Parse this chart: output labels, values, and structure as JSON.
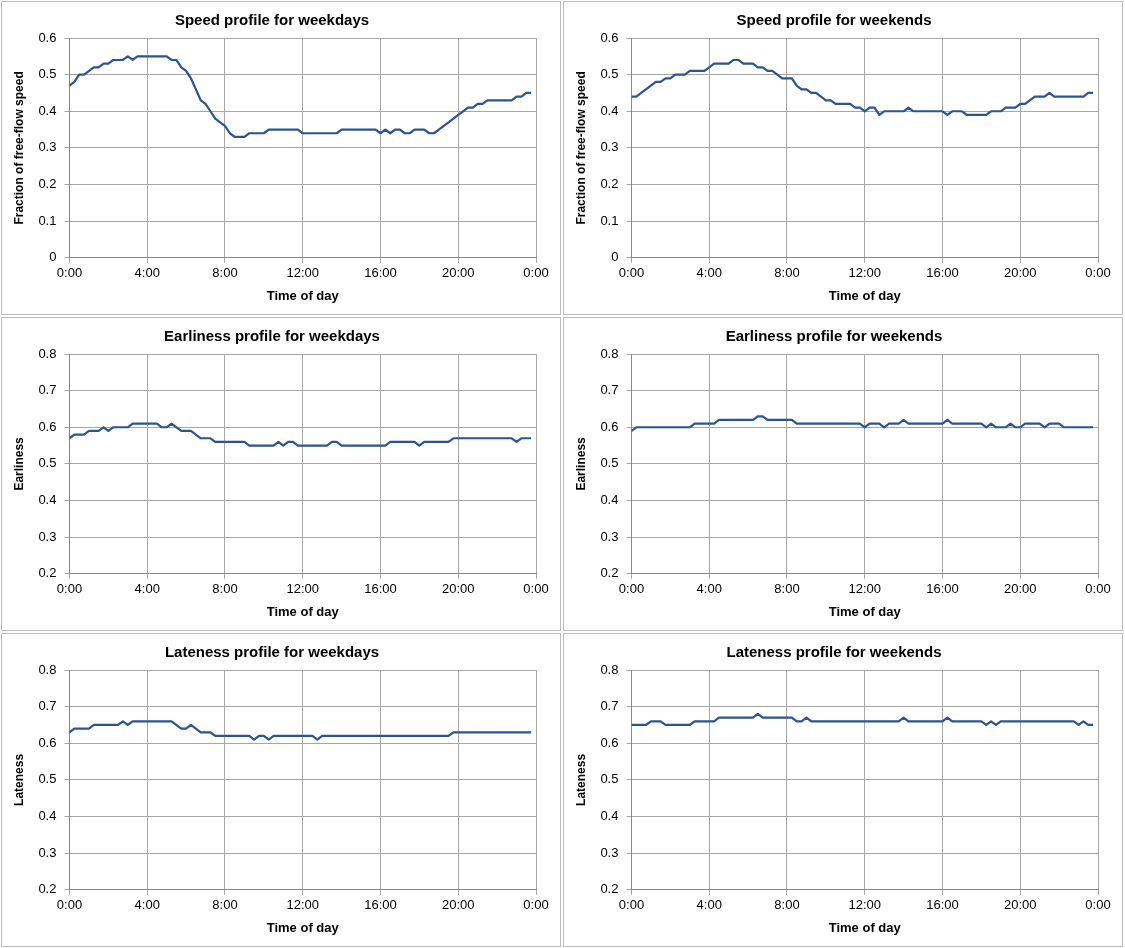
{
  "chart_data": [
    {
      "type": "line",
      "title": "Speed profile for weekdays",
      "xlabel": "Time of day",
      "ylabel": "Fraction of free-flow speed",
      "xlim": [
        0,
        24
      ],
      "xticks": [
        {
          "value": 0,
          "label": "0:00"
        },
        {
          "value": 4,
          "label": "4:00"
        },
        {
          "value": 8,
          "label": "8:00"
        },
        {
          "value": 12,
          "label": "12:00"
        },
        {
          "value": 16,
          "label": "16:00"
        },
        {
          "value": 20,
          "label": "20:00"
        },
        {
          "value": 24,
          "label": "0:00"
        }
      ],
      "ylim": [
        0,
        0.6
      ],
      "yticks": [
        0,
        0.1,
        0.2,
        0.3,
        0.4,
        0.5,
        0.6
      ],
      "grid": true,
      "legend": false,
      "marker": "none",
      "line_style": "solid",
      "series": [
        {
          "color": "#2b5490",
          "x": [
            0,
            0.25,
            0.5,
            0.75,
            1.25,
            1.5,
            1.75,
            2,
            2.25,
            2.75,
            3,
            3.25,
            3.5,
            5,
            5.25,
            5.5,
            5.75,
            6,
            6.25,
            6.5,
            6.75,
            7,
            7.25,
            7.5,
            7.75,
            8,
            8.25,
            8.5,
            9,
            9.25,
            10,
            10.25,
            11.75,
            12,
            13.75,
            14,
            15.75,
            16,
            16.25,
            16.5,
            16.75,
            17,
            17.25,
            17.5,
            17.75,
            18.25,
            18.5,
            18.75,
            19,
            19.5,
            20,
            20.25,
            20.5,
            20.75,
            21,
            21.25,
            21.5,
            22.75,
            23,
            23.25,
            23.5,
            23.75
          ],
          "values": [
            0.47,
            0.48,
            0.5,
            0.5,
            0.52,
            0.52,
            0.53,
            0.53,
            0.54,
            0.54,
            0.55,
            0.54,
            0.55,
            0.55,
            0.54,
            0.54,
            0.52,
            0.51,
            0.49,
            0.46,
            0.43,
            0.42,
            0.4,
            0.38,
            0.37,
            0.36,
            0.34,
            0.33,
            0.33,
            0.34,
            0.34,
            0.35,
            0.35,
            0.34,
            0.34,
            0.35,
            0.35,
            0.34,
            0.35,
            0.34,
            0.35,
            0.35,
            0.34,
            0.34,
            0.35,
            0.35,
            0.34,
            0.34,
            0.35,
            0.37,
            0.39,
            0.4,
            0.41,
            0.41,
            0.42,
            0.42,
            0.43,
            0.43,
            0.44,
            0.44,
            0.45,
            0.45
          ]
        }
      ]
    },
    {
      "type": "line",
      "title": "Speed profile for weekends",
      "xlabel": "Time of day",
      "ylabel": "Fraction of free-flow speed",
      "xlim": [
        0,
        24
      ],
      "xticks": [
        {
          "value": 0,
          "label": "0:00"
        },
        {
          "value": 4,
          "label": "4:00"
        },
        {
          "value": 8,
          "label": "8:00"
        },
        {
          "value": 12,
          "label": "12:00"
        },
        {
          "value": 16,
          "label": "16:00"
        },
        {
          "value": 20,
          "label": "20:00"
        },
        {
          "value": 24,
          "label": "0:00"
        }
      ],
      "ylim": [
        0,
        0.6
      ],
      "yticks": [
        0,
        0.1,
        0.2,
        0.3,
        0.4,
        0.5,
        0.6
      ],
      "grid": true,
      "legend": false,
      "marker": "none",
      "line_style": "solid",
      "series": [
        {
          "color": "#2b5490",
          "x": [
            0,
            0.25,
            0.5,
            1,
            1.25,
            1.5,
            1.75,
            2,
            2.25,
            2.75,
            3,
            3.75,
            4,
            4.25,
            5,
            5.25,
            5.5,
            5.75,
            6.25,
            6.5,
            6.75,
            7,
            7.25,
            7.75,
            8.25,
            8.5,
            8.75,
            9,
            9.25,
            9.5,
            10,
            10.25,
            10.5,
            11.25,
            11.5,
            11.75,
            12,
            12.25,
            12.5,
            12.75,
            13,
            13.25,
            14,
            14.25,
            14.5,
            16,
            16.25,
            16.5,
            17,
            17.25,
            18.25,
            18.5,
            19,
            19.25,
            19.75,
            20,
            20.25,
            20.75,
            21.25,
            21.5,
            21.75,
            23.25,
            23.5,
            23.75
          ],
          "values": [
            0.44,
            0.44,
            0.45,
            0.47,
            0.48,
            0.48,
            0.49,
            0.49,
            0.5,
            0.5,
            0.51,
            0.51,
            0.52,
            0.53,
            0.53,
            0.54,
            0.54,
            0.53,
            0.53,
            0.52,
            0.52,
            0.51,
            0.51,
            0.49,
            0.49,
            0.47,
            0.46,
            0.46,
            0.45,
            0.45,
            0.43,
            0.43,
            0.42,
            0.42,
            0.41,
            0.41,
            0.4,
            0.41,
            0.41,
            0.39,
            0.4,
            0.4,
            0.4,
            0.41,
            0.4,
            0.4,
            0.39,
            0.4,
            0.4,
            0.39,
            0.39,
            0.4,
            0.4,
            0.41,
            0.41,
            0.42,
            0.42,
            0.44,
            0.44,
            0.45,
            0.44,
            0.44,
            0.45,
            0.45
          ]
        }
      ]
    },
    {
      "type": "line",
      "title": "Earliness profile for weekdays",
      "xlabel": "Time of day",
      "ylabel": "Earliness",
      "xlim": [
        0,
        24
      ],
      "xticks": [
        {
          "value": 0,
          "label": "0:00"
        },
        {
          "value": 4,
          "label": "4:00"
        },
        {
          "value": 8,
          "label": "8:00"
        },
        {
          "value": 12,
          "label": "12:00"
        },
        {
          "value": 16,
          "label": "16:00"
        },
        {
          "value": 20,
          "label": "20:00"
        },
        {
          "value": 24,
          "label": "0:00"
        }
      ],
      "ylim": [
        0.2,
        0.8
      ],
      "yticks": [
        0.2,
        0.3,
        0.4,
        0.5,
        0.6,
        0.7,
        0.8
      ],
      "grid": true,
      "legend": false,
      "marker": "none",
      "line_style": "solid",
      "series": [
        {
          "color": "#2b5490",
          "x": [
            0,
            0.25,
            0.75,
            1,
            1.5,
            1.75,
            2,
            2.25,
            3,
            3.25,
            4.5,
            4.75,
            5,
            5.25,
            5.75,
            6.25,
            6.75,
            7.25,
            7.5,
            9,
            9.25,
            10.5,
            10.75,
            11,
            11.25,
            11.5,
            11.75,
            13.25,
            13.5,
            13.75,
            14,
            16.25,
            16.5,
            17.75,
            18,
            18.25,
            19.5,
            19.75,
            22.75,
            23,
            23.25,
            23.75
          ],
          "values": [
            0.57,
            0.58,
            0.58,
            0.59,
            0.59,
            0.6,
            0.59,
            0.6,
            0.6,
            0.61,
            0.61,
            0.6,
            0.6,
            0.61,
            0.59,
            0.59,
            0.57,
            0.57,
            0.56,
            0.56,
            0.55,
            0.55,
            0.56,
            0.55,
            0.56,
            0.56,
            0.55,
            0.55,
            0.56,
            0.56,
            0.55,
            0.55,
            0.56,
            0.56,
            0.55,
            0.56,
            0.56,
            0.57,
            0.57,
            0.56,
            0.57,
            0.57
          ]
        }
      ]
    },
    {
      "type": "line",
      "title": "Earliness profile for weekends",
      "xlabel": "Time of day",
      "ylabel": "Earliness",
      "xlim": [
        0,
        24
      ],
      "xticks": [
        {
          "value": 0,
          "label": "0:00"
        },
        {
          "value": 4,
          "label": "4:00"
        },
        {
          "value": 8,
          "label": "8:00"
        },
        {
          "value": 12,
          "label": "12:00"
        },
        {
          "value": 16,
          "label": "16:00"
        },
        {
          "value": 20,
          "label": "20:00"
        },
        {
          "value": 24,
          "label": "0:00"
        }
      ],
      "ylim": [
        0.2,
        0.8
      ],
      "yticks": [
        0.2,
        0.3,
        0.4,
        0.5,
        0.6,
        0.7,
        0.8
      ],
      "grid": true,
      "legend": false,
      "marker": "none",
      "line_style": "solid",
      "series": [
        {
          "color": "#2b5490",
          "x": [
            0,
            0.25,
            3,
            3.25,
            4.25,
            4.5,
            6.25,
            6.5,
            6.75,
            7,
            8.25,
            8.5,
            11.75,
            12,
            12.25,
            12.75,
            13,
            13.25,
            13.75,
            14,
            14.25,
            16,
            16.25,
            16.5,
            18,
            18.25,
            18.5,
            18.75,
            19.25,
            19.5,
            19.75,
            20,
            20.25,
            21,
            21.25,
            21.5,
            22,
            22.25,
            23.75
          ],
          "values": [
            0.59,
            0.6,
            0.6,
            0.61,
            0.61,
            0.62,
            0.62,
            0.63,
            0.63,
            0.62,
            0.62,
            0.61,
            0.61,
            0.6,
            0.61,
            0.61,
            0.6,
            0.61,
            0.61,
            0.62,
            0.61,
            0.61,
            0.62,
            0.61,
            0.61,
            0.6,
            0.61,
            0.6,
            0.6,
            0.61,
            0.6,
            0.6,
            0.61,
            0.61,
            0.6,
            0.61,
            0.61,
            0.6,
            0.6
          ]
        }
      ]
    },
    {
      "type": "line",
      "title": "Lateness profile for weekdays",
      "xlabel": "Time of day",
      "ylabel": "Lateness",
      "xlim": [
        0,
        24
      ],
      "xticks": [
        {
          "value": 0,
          "label": "0:00"
        },
        {
          "value": 4,
          "label": "4:00"
        },
        {
          "value": 8,
          "label": "8:00"
        },
        {
          "value": 12,
          "label": "12:00"
        },
        {
          "value": 16,
          "label": "16:00"
        },
        {
          "value": 20,
          "label": "20:00"
        },
        {
          "value": 24,
          "label": "0:00"
        }
      ],
      "ylim": [
        0.2,
        0.8
      ],
      "yticks": [
        0.2,
        0.3,
        0.4,
        0.5,
        0.6,
        0.7,
        0.8
      ],
      "grid": true,
      "legend": false,
      "marker": "none",
      "line_style": "solid",
      "series": [
        {
          "color": "#2b5490",
          "x": [
            0,
            0.25,
            1,
            1.25,
            2.5,
            2.75,
            3,
            3.25,
            5.25,
            5.75,
            6,
            6.25,
            6.75,
            7.25,
            7.5,
            9.25,
            9.5,
            9.75,
            10,
            10.25,
            10.5,
            12.5,
            12.75,
            13,
            19.5,
            19.75,
            23.75
          ],
          "values": [
            0.63,
            0.64,
            0.64,
            0.65,
            0.65,
            0.66,
            0.65,
            0.66,
            0.66,
            0.64,
            0.64,
            0.65,
            0.63,
            0.63,
            0.62,
            0.62,
            0.61,
            0.62,
            0.62,
            0.61,
            0.62,
            0.62,
            0.61,
            0.62,
            0.62,
            0.63,
            0.63
          ]
        }
      ]
    },
    {
      "type": "line",
      "title": "Lateness profile for weekends",
      "xlabel": "Time of day",
      "ylabel": "Lateness",
      "xlim": [
        0,
        24
      ],
      "xticks": [
        {
          "value": 0,
          "label": "0:00"
        },
        {
          "value": 4,
          "label": "4:00"
        },
        {
          "value": 8,
          "label": "8:00"
        },
        {
          "value": 12,
          "label": "12:00"
        },
        {
          "value": 16,
          "label": "16:00"
        },
        {
          "value": 20,
          "label": "20:00"
        },
        {
          "value": 24,
          "label": "0:00"
        }
      ],
      "ylim": [
        0.2,
        0.8
      ],
      "yticks": [
        0.2,
        0.3,
        0.4,
        0.5,
        0.6,
        0.7,
        0.8
      ],
      "grid": true,
      "legend": false,
      "marker": "none",
      "line_style": "solid",
      "series": [
        {
          "color": "#2b5490",
          "x": [
            0,
            0.75,
            1,
            1.5,
            1.75,
            3,
            3.25,
            4.25,
            4.5,
            6.25,
            6.5,
            6.75,
            8.25,
            8.5,
            8.75,
            9,
            9.25,
            13.75,
            14,
            14.25,
            16,
            16.25,
            16.5,
            18,
            18.25,
            18.5,
            18.75,
            19,
            22.75,
            23,
            23.25,
            23.5,
            23.75
          ],
          "values": [
            0.65,
            0.65,
            0.66,
            0.66,
            0.65,
            0.65,
            0.66,
            0.66,
            0.67,
            0.67,
            0.68,
            0.67,
            0.67,
            0.66,
            0.66,
            0.67,
            0.66,
            0.66,
            0.67,
            0.66,
            0.66,
            0.67,
            0.66,
            0.66,
            0.65,
            0.66,
            0.65,
            0.66,
            0.66,
            0.65,
            0.66,
            0.65,
            0.65
          ]
        }
      ]
    }
  ]
}
